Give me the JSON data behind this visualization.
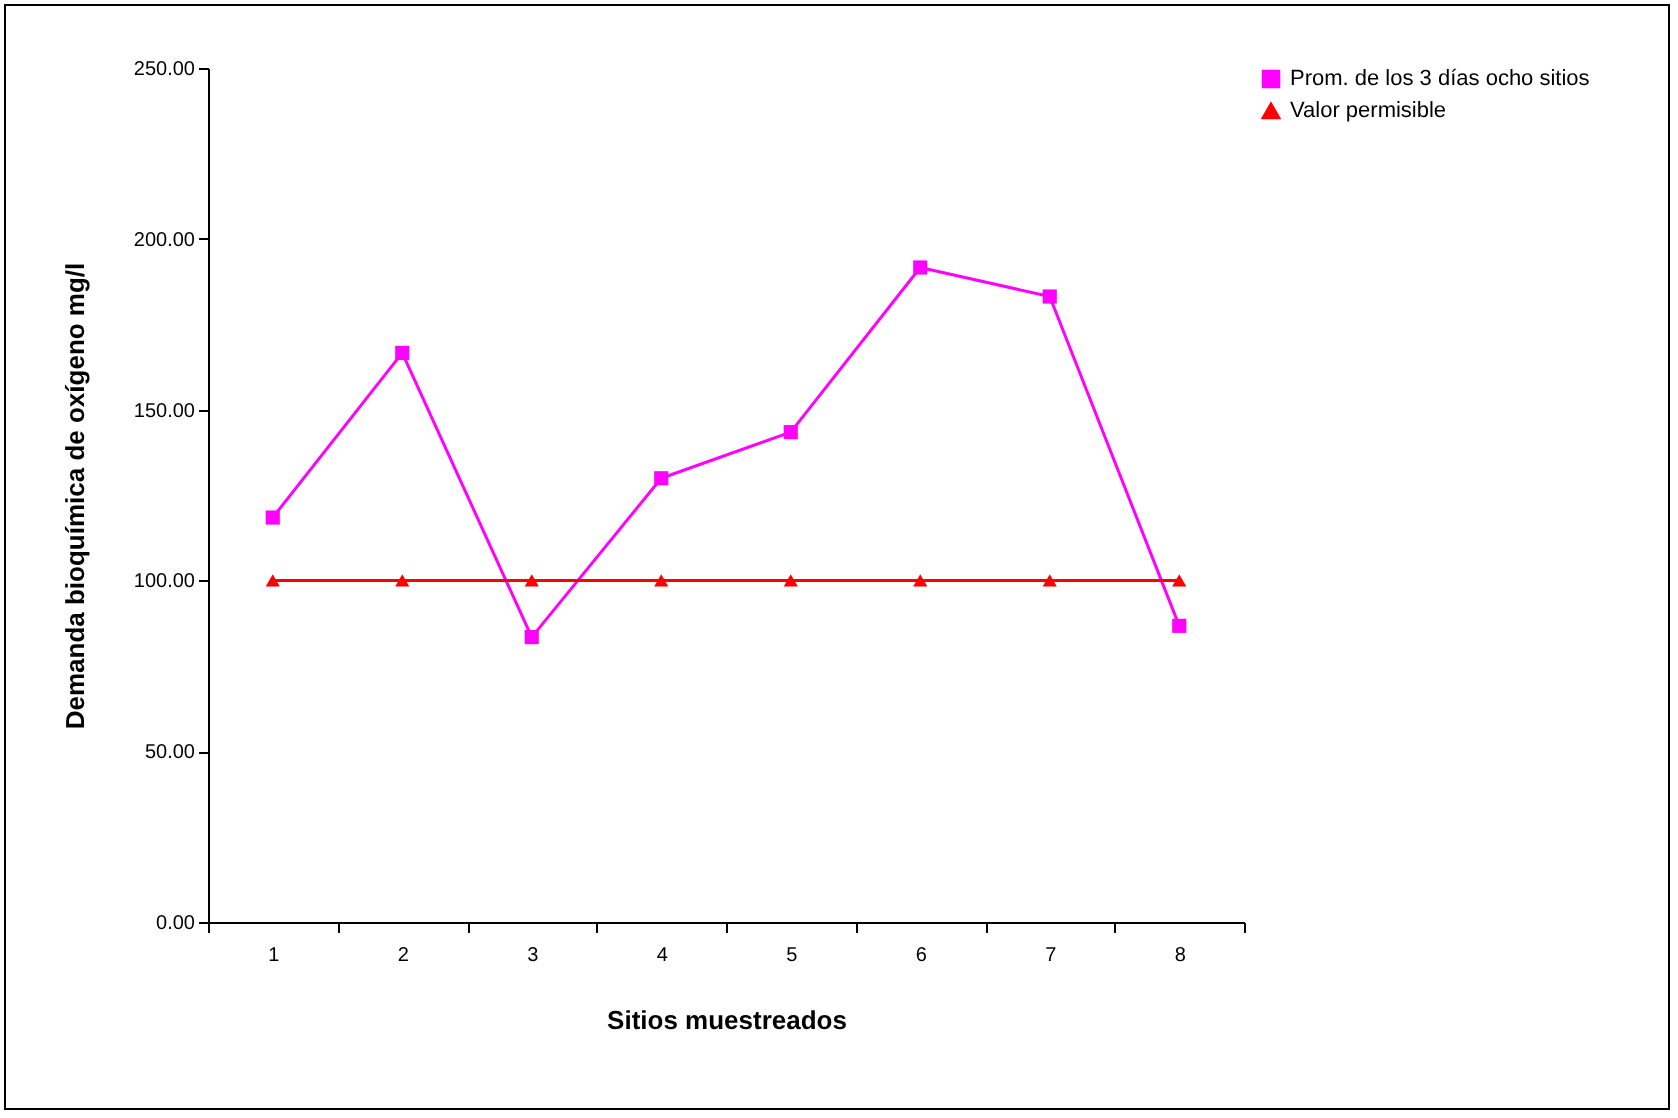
{
  "chart_data": {
    "type": "line",
    "xlabel": "Sitios muestreados",
    "ylabel": "Demanda bioquímica de oxígeno mg/l",
    "categories": [
      "1",
      "2",
      "3",
      "4",
      "5",
      "6",
      "7",
      "8"
    ],
    "series": [
      {
        "name": "Prom. de los 3 días  ocho sitios",
        "color": "#ff00ff",
        "marker": "square",
        "values": [
          118.4,
          166.6,
          83.4,
          129.9,
          143.4,
          191.6,
          183.1,
          86.7
        ]
      },
      {
        "name": "Valor permisible",
        "color": "#ff0000",
        "marker": "triangle",
        "values": [
          100,
          100,
          100,
          100,
          100,
          100,
          100,
          100
        ]
      }
    ],
    "ylim": [
      0,
      250
    ],
    "yticks": [
      {
        "value": 0,
        "label": "0.00"
      },
      {
        "value": 50,
        "label": "50.00"
      },
      {
        "value": 100,
        "label": "100.00"
      },
      {
        "value": 150,
        "label": "150.00"
      },
      {
        "value": 200,
        "label": "200.00"
      },
      {
        "value": 250,
        "label": "250.00"
      }
    ],
    "grid": false,
    "legend": "right",
    "line_style": "solid"
  }
}
